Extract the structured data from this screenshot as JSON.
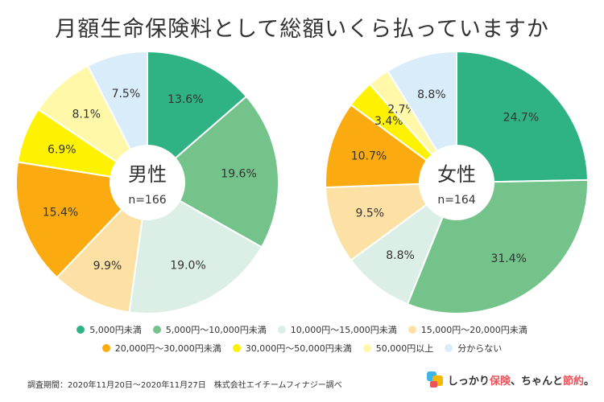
{
  "title": "月額生命保険料として総額いくら払っていますか",
  "colors": {
    "c1": "#2fb284",
    "c2": "#73c38a",
    "c3": "#dcefe6",
    "c4": "#fde0a4",
    "c5": "#fbab0f",
    "c6": "#fff200",
    "c7": "#fff8a8",
    "c8": "#d9ecf9"
  },
  "legend": [
    [
      "5,000円未満",
      "5,000円〜10,000円未満",
      "10,000円〜15,000円未満",
      "15,000円〜20,000円未満"
    ],
    [
      "20,000円〜30,000円未満",
      "30,000円〜50,000円未満",
      "50,000円以上",
      "分からない"
    ]
  ],
  "chart_data": [
    {
      "type": "pie",
      "center_label": "男性",
      "n_label": "n=166",
      "categories": [
        "5,000円未満",
        "5,000円〜10,000円未満",
        "10,000円〜15,000円未満",
        "15,000円〜20,000円未満",
        "20,000円〜30,000円未満",
        "30,000円〜50,000円未満",
        "50,000円以上",
        "分からない"
      ],
      "values": [
        13.6,
        19.6,
        19.0,
        9.9,
        15.4,
        6.9,
        8.1,
        7.5
      ],
      "labels": [
        "13.6%",
        "19.6%",
        "19.0%",
        "9.9%",
        "15.4%",
        "6.9%",
        "8.1%",
        "7.5%"
      ]
    },
    {
      "type": "pie",
      "center_label": "女性",
      "n_label": "n=164",
      "categories": [
        "5,000円未満",
        "5,000円〜10,000円未満",
        "10,000円〜15,000円未満",
        "15,000円〜20,000円未満",
        "20,000円〜30,000円未満",
        "30,000円〜50,000円未満",
        "50,000円以上",
        "分からない"
      ],
      "values": [
        24.7,
        31.4,
        8.8,
        9.5,
        10.7,
        3.4,
        2.7,
        8.8
      ],
      "labels": [
        "24.7%",
        "31.4%",
        "8.8%",
        "9.5%",
        "10.7%",
        "3.4%",
        "2.7%",
        "8.8%"
      ]
    }
  ],
  "footer_note": "調査期間：2020年11月20日〜2020年11月27日　株式会社エイチームフィナジー調べ",
  "logo": {
    "text_before": "しっかり",
    "text_highlight1": "保険",
    "text_middle": "、ちゃんと",
    "text_highlight2": "節約",
    "text_end": "。"
  }
}
